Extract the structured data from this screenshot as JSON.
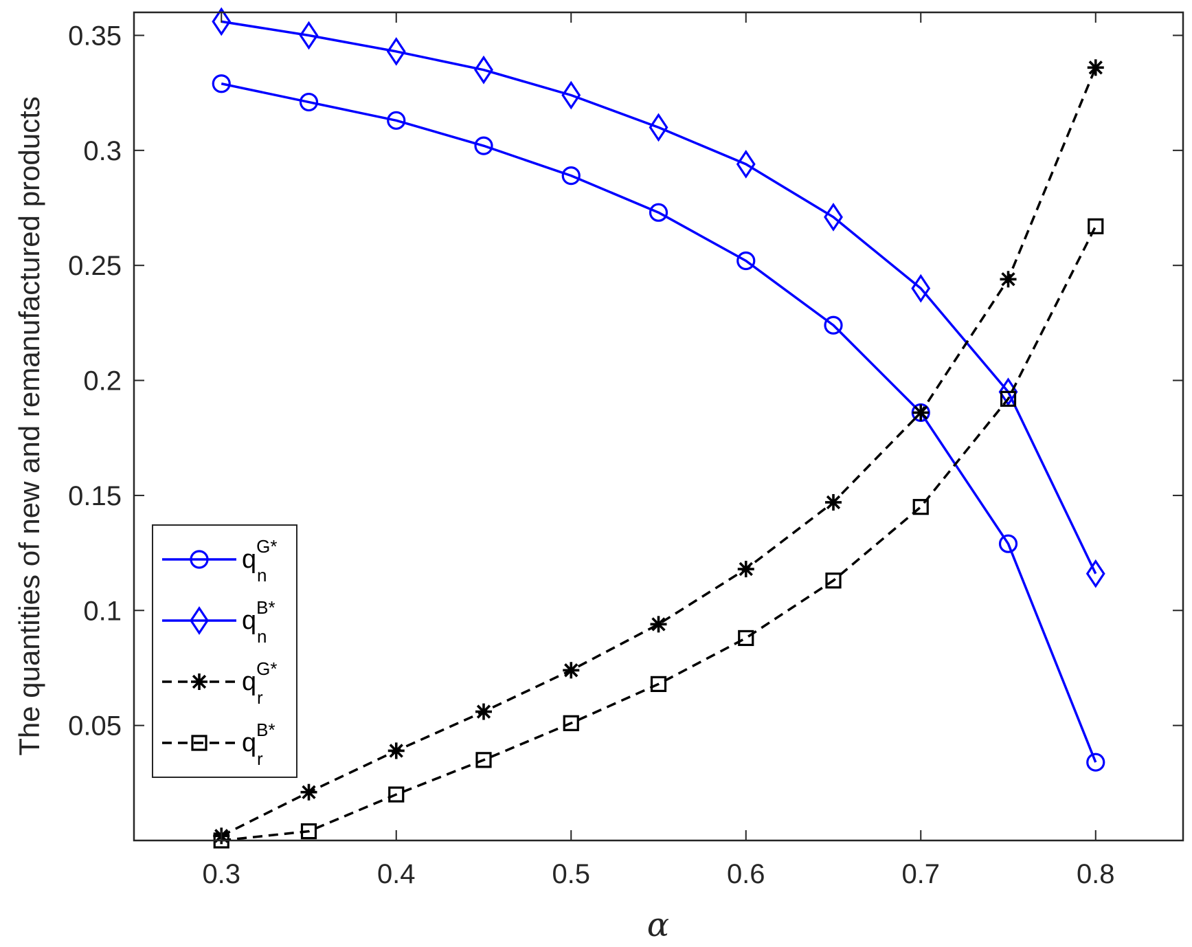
{
  "chart_data": {
    "type": "line",
    "xlabel": "α",
    "ylabel": "The quantities of new and remanufactured products",
    "xlim": [
      0.25,
      0.85
    ],
    "ylim": [
      0,
      0.36
    ],
    "xticks": [
      0.3,
      0.4,
      0.5,
      0.6,
      0.7,
      0.8
    ],
    "xtick_labels": [
      "0.3",
      "0.4",
      "0.5",
      "0.6",
      "0.7",
      "0.8"
    ],
    "yticks": [
      0.05,
      0.1,
      0.15,
      0.2,
      0.25,
      0.3,
      0.35
    ],
    "ytick_labels": [
      "0.05",
      "0.1",
      "0.15",
      "0.2",
      "0.25",
      "0.3",
      "0.35"
    ],
    "grid": false,
    "legend_position": "lower-left",
    "x": [
      0.3,
      0.35,
      0.4,
      0.45,
      0.5,
      0.55,
      0.6,
      0.65,
      0.7,
      0.75,
      0.8
    ],
    "series": [
      {
        "name": "q_n^{G*}",
        "base": "q",
        "sub": "n",
        "sup": "G*",
        "color": "#0000ff",
        "line": "solid",
        "marker": "circle",
        "values": [
          0.329,
          0.321,
          0.313,
          0.302,
          0.289,
          0.273,
          0.252,
          0.224,
          0.186,
          0.129,
          0.034
        ]
      },
      {
        "name": "q_n^{B*}",
        "base": "q",
        "sub": "n",
        "sup": "B*",
        "color": "#0000ff",
        "line": "solid",
        "marker": "diamond",
        "values": [
          0.356,
          0.35,
          0.343,
          0.335,
          0.324,
          0.31,
          0.294,
          0.271,
          0.24,
          0.195,
          0.116
        ]
      },
      {
        "name": "q_r^{G*}",
        "base": "q",
        "sub": "r",
        "sup": "G*",
        "color": "#000000",
        "line": "dashed",
        "marker": "asterisk",
        "values": [
          0.002,
          0.021,
          0.039,
          0.056,
          0.074,
          0.094,
          0.118,
          0.147,
          0.186,
          0.244,
          0.336
        ]
      },
      {
        "name": "q_r^{B*}",
        "base": "q",
        "sub": "r",
        "sup": "B*",
        "color": "#000000",
        "line": "dashed",
        "marker": "square",
        "values": [
          0.0,
          0.004,
          0.02,
          0.035,
          0.051,
          0.068,
          0.088,
          0.113,
          0.145,
          0.192,
          0.267
        ]
      }
    ]
  }
}
